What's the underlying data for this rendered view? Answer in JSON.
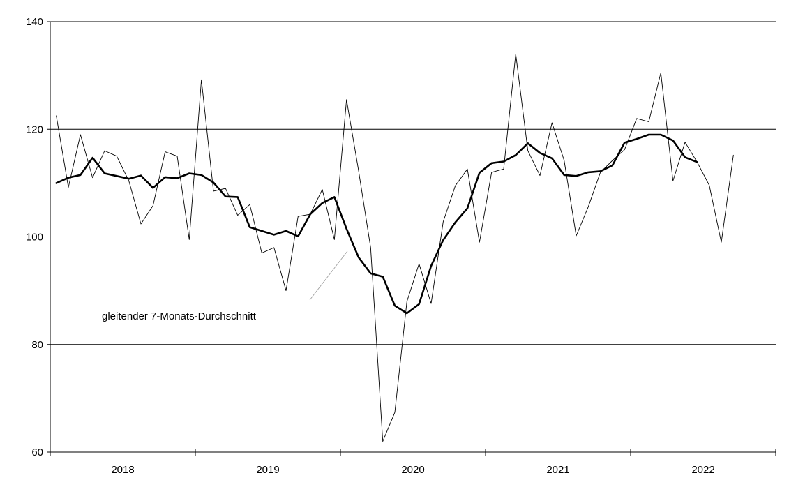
{
  "chart_data": {
    "type": "line",
    "title": "",
    "xlabel": "",
    "ylabel": "",
    "ylim": [
      60,
      140
    ],
    "yticks": [
      60,
      80,
      100,
      120,
      140
    ],
    "grid": "horizontal",
    "x_start": "2018-01",
    "year_labels": [
      "2018",
      "2019",
      "2020",
      "2021",
      "2022"
    ],
    "annotation": "gleitender 7-Monats-Durchschnitt",
    "series": [
      {
        "values": [
          122.5,
          109.2,
          119.0,
          111.0,
          116.0,
          115.0,
          110.4,
          102.4,
          105.8,
          115.8,
          115.0,
          99.5,
          129.2,
          108.5,
          109.0,
          104.0,
          106.0,
          97.0,
          98.0,
          90.0,
          103.8,
          104.2,
          108.8,
          99.5,
          125.5,
          112.3,
          98.0,
          62.0,
          67.4,
          88.0,
          95.0,
          87.6,
          102.8,
          109.5,
          112.6,
          99.0,
          112.0,
          112.6,
          134.0,
          116.0,
          111.4,
          121.2,
          114.2,
          100.2,
          105.6,
          112.0,
          114.2,
          116.2,
          122.0,
          121.4,
          130.5,
          110.4,
          117.6,
          113.9,
          109.6,
          99.0,
          115.2
        ]
      },
      {
        "values": [
          110.0,
          111.0,
          111.5,
          114.7,
          111.8,
          111.3,
          110.8,
          111.4,
          109.1,
          111.1,
          110.9,
          111.8,
          111.5,
          110.1,
          107.5,
          107.4,
          101.8,
          101.1,
          100.4,
          101.1,
          100.1,
          104.2,
          106.3,
          107.4,
          101.5,
          96.2,
          93.2,
          92.6,
          87.2,
          85.8,
          87.5,
          94.6,
          99.4,
          102.7,
          105.3,
          111.9,
          113.7,
          114.0,
          115.2,
          117.4,
          115.6,
          114.6,
          111.5,
          111.3,
          112.0,
          112.2,
          113.3,
          117.5,
          118.2,
          119.0,
          119.0,
          117.9,
          114.8,
          113.9
        ]
      }
    ]
  }
}
